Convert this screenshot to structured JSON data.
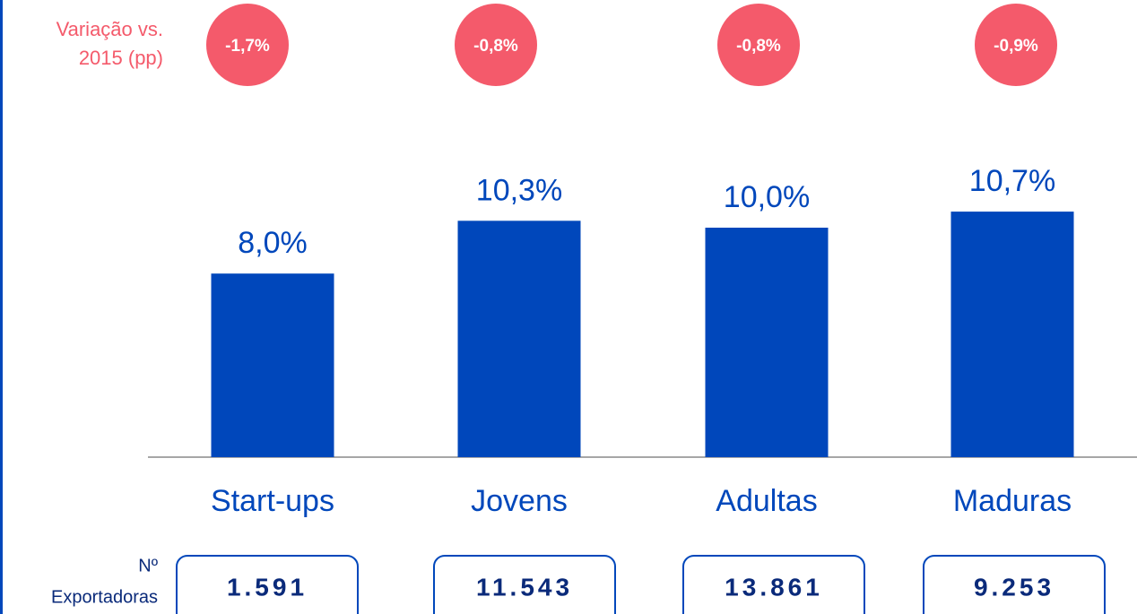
{
  "chart_data": {
    "type": "bar",
    "categories": [
      "Start-ups",
      "Jovens",
      "Adultas",
      "Maduras"
    ],
    "values": [
      8.0,
      10.3,
      10.0,
      10.7
    ],
    "value_labels": [
      "8,0%",
      "10,3%",
      "10,0%",
      "10,7%"
    ],
    "color": "#0047bb",
    "ylim": [
      0,
      16
    ],
    "variation_label": [
      "Variação vs.",
      "2015 (pp)"
    ],
    "variation_labels": [
      "-1,7%",
      "-0,8%",
      "-0,8%",
      "-0,9%"
    ],
    "variation_color": "#f45a6b",
    "exporters_label": [
      "Nº",
      "Exportadoras"
    ],
    "exporters": [
      "1.591",
      "11.543",
      "13.861",
      "9.253"
    ]
  }
}
